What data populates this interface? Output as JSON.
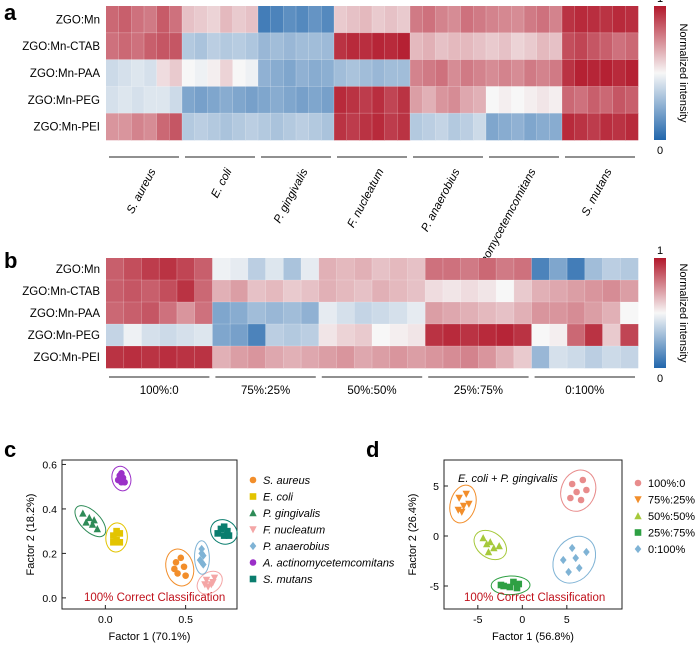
{
  "panels": {
    "a": {
      "letter": "a",
      "rows": [
        "ZGO:Mn",
        "ZGO:Mn-CTAB",
        "ZGO:Mn-PAA",
        "ZGO:Mn-PEG",
        "ZGO:Mn-PEI"
      ],
      "groups": [
        "S. aureus",
        "E. coli",
        "P. gingivalis",
        "F. nucleatum",
        "P. anaerobius",
        "A. actinomycetemcomitans",
        "S. mutans"
      ],
      "colorbar": {
        "max_label": "1",
        "min_label": "0",
        "title": "Normalized intensity"
      }
    },
    "b": {
      "letter": "b",
      "rows": [
        "ZGO:Mn",
        "ZGO:Mn-CTAB",
        "ZGO:Mn-PAA",
        "ZGO:Mn-PEG",
        "ZGO:Mn-PEI"
      ],
      "groups": [
        "100%:0",
        "75%:25%",
        "50%:50%",
        "25%:75%",
        "0:100%"
      ],
      "colorbar": {
        "max_label": "1",
        "min_label": "0",
        "title": "Normalized intensity"
      }
    },
    "c": {
      "letter": "c",
      "annotation": "100% Correct Classification"
    },
    "d": {
      "letter": "d",
      "annotation": "100% Correct Classification",
      "subtitle": "E. coli + P. gingivalis"
    }
  },
  "colors": {
    "low": "#2166ac",
    "mid": "#f7f7f7",
    "high": "#b2182b",
    "annotation": "#c0121c"
  },
  "chart_data": [
    {
      "type": "heatmap",
      "panel": "a",
      "title": "",
      "rows": [
        "ZGO:Mn",
        "ZGO:Mn-CTAB",
        "ZGO:Mn-PAA",
        "ZGO:Mn-PEG",
        "ZGO:Mn-PEI"
      ],
      "groups": [
        "S. aureus",
        "E. coli",
        "P. gingivalis",
        "F. nucleatum",
        "P. anaerobius",
        "A. actinomycetemcomitans",
        "S. mutans"
      ],
      "columns_per_group": 6,
      "value_range": [
        0,
        1
      ],
      "values": [
        [
          0.82,
          0.84,
          0.8,
          0.78,
          0.85,
          0.8,
          0.62,
          0.6,
          0.58,
          0.64,
          0.6,
          0.62,
          0.08,
          0.1,
          0.14,
          0.12,
          0.16,
          0.12,
          0.6,
          0.62,
          0.64,
          0.6,
          0.62,
          0.6,
          0.78,
          0.8,
          0.76,
          0.74,
          0.8,
          0.78,
          0.76,
          0.75,
          0.74,
          0.78,
          0.8,
          0.76,
          0.94,
          0.96,
          0.95,
          0.94,
          0.96,
          0.95
        ],
        [
          0.8,
          0.82,
          0.8,
          0.84,
          0.86,
          0.86,
          0.34,
          0.32,
          0.36,
          0.34,
          0.35,
          0.33,
          0.28,
          0.3,
          0.28,
          0.3,
          0.3,
          0.29,
          0.94,
          0.96,
          0.95,
          0.97,
          0.96,
          0.98,
          0.64,
          0.66,
          0.62,
          0.64,
          0.64,
          0.62,
          0.6,
          0.62,
          0.58,
          0.6,
          0.64,
          0.62,
          0.88,
          0.9,
          0.86,
          0.84,
          0.8,
          0.82
        ],
        [
          0.4,
          0.42,
          0.44,
          0.42,
          0.56,
          0.6,
          0.5,
          0.48,
          0.52,
          0.58,
          0.5,
          0.48,
          0.26,
          0.24,
          0.22,
          0.26,
          0.24,
          0.25,
          0.3,
          0.32,
          0.3,
          0.28,
          0.3,
          0.3,
          0.76,
          0.78,
          0.8,
          0.74,
          0.78,
          0.76,
          0.74,
          0.76,
          0.74,
          0.78,
          0.76,
          0.78,
          0.94,
          0.98,
          0.97,
          0.98,
          0.96,
          0.98
        ],
        [
          0.42,
          0.44,
          0.42,
          0.44,
          0.44,
          0.4,
          0.22,
          0.2,
          0.22,
          0.24,
          0.22,
          0.2,
          0.22,
          0.24,
          0.22,
          0.2,
          0.22,
          0.2,
          0.96,
          0.94,
          0.92,
          0.95,
          0.9,
          0.94,
          0.7,
          0.66,
          0.72,
          0.74,
          0.68,
          0.66,
          0.5,
          0.52,
          0.5,
          0.52,
          0.54,
          0.52,
          0.82,
          0.8,
          0.84,
          0.82,
          0.86,
          0.84
        ],
        [
          0.72,
          0.72,
          0.76,
          0.74,
          0.82,
          0.86,
          0.34,
          0.36,
          0.34,
          0.32,
          0.34,
          0.36,
          0.34,
          0.32,
          0.34,
          0.36,
          0.34,
          0.32,
          0.94,
          0.92,
          0.94,
          0.96,
          0.92,
          0.94,
          0.34,
          0.36,
          0.38,
          0.34,
          0.36,
          0.4,
          0.22,
          0.24,
          0.26,
          0.22,
          0.24,
          0.24,
          0.96,
          0.94,
          0.92,
          0.95,
          0.94,
          0.96
        ]
      ]
    },
    {
      "type": "heatmap",
      "panel": "b",
      "title": "",
      "rows": [
        "ZGO:Mn",
        "ZGO:Mn-CTAB",
        "ZGO:Mn-PAA",
        "ZGO:Mn-PEG",
        "ZGO:Mn-PEI"
      ],
      "groups": [
        "100%:0",
        "75%:25%",
        "50%:50%",
        "25%:75%",
        "0:100%"
      ],
      "columns_per_group": 6,
      "value_range": [
        0,
        1
      ],
      "values": [
        [
          0.84,
          0.88,
          0.92,
          0.94,
          0.9,
          0.84,
          0.48,
          0.46,
          0.36,
          0.44,
          0.32,
          0.46,
          0.66,
          0.64,
          0.66,
          0.62,
          0.64,
          0.62,
          0.8,
          0.8,
          0.78,
          0.82,
          0.78,
          0.8,
          0.1,
          0.22,
          0.08,
          0.3,
          0.36,
          0.34
        ],
        [
          0.84,
          0.86,
          0.84,
          0.88,
          0.94,
          0.82,
          0.66,
          0.7,
          0.62,
          0.64,
          0.6,
          0.62,
          0.66,
          0.64,
          0.62,
          0.66,
          0.64,
          0.62,
          0.56,
          0.54,
          0.56,
          0.54,
          0.5,
          0.6,
          0.66,
          0.68,
          0.7,
          0.72,
          0.74,
          0.7
        ],
        [
          0.82,
          0.84,
          0.86,
          0.8,
          0.72,
          0.8,
          0.22,
          0.24,
          0.3,
          0.28,
          0.3,
          0.26,
          0.46,
          0.42,
          0.38,
          0.4,
          0.42,
          0.46,
          0.7,
          0.68,
          0.66,
          0.64,
          0.62,
          0.66,
          0.72,
          0.72,
          0.74,
          0.7,
          0.66,
          0.5
        ],
        [
          0.38,
          0.48,
          0.42,
          0.4,
          0.42,
          0.44,
          0.22,
          0.2,
          0.1,
          0.36,
          0.34,
          0.36,
          0.54,
          0.58,
          0.6,
          0.5,
          0.52,
          0.54,
          0.94,
          0.96,
          0.94,
          0.96,
          0.97,
          0.94,
          0.5,
          0.52,
          0.82,
          0.94,
          0.6,
          0.9
        ],
        [
          0.94,
          0.95,
          0.94,
          0.95,
          0.94,
          0.94,
          0.66,
          0.7,
          0.72,
          0.68,
          0.66,
          0.68,
          0.7,
          0.72,
          0.68,
          0.7,
          0.72,
          0.7,
          0.72,
          0.74,
          0.76,
          0.72,
          0.66,
          0.6,
          0.28,
          0.42,
          0.4,
          0.36,
          0.4,
          0.38
        ]
      ]
    },
    {
      "type": "scatter",
      "panel": "c",
      "xlabel": "Factor 1 (70.1%)",
      "ylabel": "Factor 2 (18.2%)",
      "xlim": [
        -0.27,
        0.82
      ],
      "ylim": [
        -0.05,
        0.62
      ],
      "xticks": [
        0.0,
        0.5
      ],
      "yticks": [
        0.0,
        0.2,
        0.4,
        0.6
      ],
      "series": [
        {
          "name": "S. aureus",
          "color": "#f28e2b",
          "marker": "circle",
          "points": [
            [
              0.44,
              0.16
            ],
            [
              0.47,
              0.18
            ],
            [
              0.49,
              0.14
            ],
            [
              0.45,
              0.11
            ],
            [
              0.5,
              0.1
            ],
            [
              0.43,
              0.13
            ]
          ]
        },
        {
          "name": "E. coli",
          "color": "#e3c400",
          "marker": "square",
          "points": [
            [
              0.05,
              0.28
            ],
            [
              0.09,
              0.29
            ],
            [
              0.07,
              0.26
            ],
            [
              0.05,
              0.25
            ],
            [
              0.09,
              0.25
            ],
            [
              0.07,
              0.3
            ]
          ]
        },
        {
          "name": "P. gingivalis",
          "color": "#2e8b57",
          "marker": "triangle-up",
          "points": [
            [
              -0.14,
              0.38
            ],
            [
              -0.1,
              0.36
            ],
            [
              -0.08,
              0.33
            ],
            [
              -0.05,
              0.31
            ],
            [
              -0.12,
              0.34
            ],
            [
              -0.07,
              0.35
            ]
          ]
        },
        {
          "name": "F. nucleatum",
          "color": "#f4a6a6",
          "marker": "triangle-down",
          "points": [
            [
              0.63,
              0.08
            ],
            [
              0.67,
              0.07
            ],
            [
              0.64,
              0.05
            ],
            [
              0.68,
              0.09
            ],
            [
              0.66,
              0.06
            ],
            [
              0.62,
              0.06
            ]
          ]
        },
        {
          "name": "P. anaerobius",
          "color": "#7fb3d5",
          "marker": "diamond",
          "points": [
            [
              0.6,
              0.22
            ],
            [
              0.61,
              0.19
            ],
            [
              0.59,
              0.17
            ],
            [
              0.61,
              0.15
            ],
            [
              0.6,
              0.2
            ],
            [
              0.6,
              0.16
            ]
          ]
        },
        {
          "name": "A. actinomycetemcomitans",
          "color": "#9b30c8",
          "marker": "circle",
          "points": [
            [
              0.09,
              0.55
            ],
            [
              0.11,
              0.54
            ],
            [
              0.1,
              0.52
            ],
            [
              0.08,
              0.53
            ],
            [
              0.12,
              0.52
            ],
            [
              0.1,
              0.56
            ]
          ]
        },
        {
          "name": "S. mutans",
          "color": "#0a7d6e",
          "marker": "square",
          "points": [
            [
              0.72,
              0.31
            ],
            [
              0.76,
              0.3
            ],
            [
              0.74,
              0.28
            ],
            [
              0.7,
              0.29
            ],
            [
              0.77,
              0.28
            ],
            [
              0.74,
              0.32
            ]
          ]
        }
      ]
    },
    {
      "type": "scatter",
      "panel": "d",
      "title": "E. coli + P. gingivalis",
      "xlabel": "Factor 1 (56.8%)",
      "ylabel": "Factor 2 (26.4%)",
      "xlim": [
        -8.8,
        11.2
      ],
      "ylim": [
        -7.3,
        7.6
      ],
      "xticks": [
        -5,
        0,
        5
      ],
      "yticks": [
        -5,
        0,
        5
      ],
      "series": [
        {
          "name": "100%:0",
          "color": "#e88c8c",
          "marker": "circle",
          "points": [
            [
              5.6,
              5.2
            ],
            [
              6.8,
              5.6
            ],
            [
              6.1,
              4.4
            ],
            [
              5.4,
              3.8
            ],
            [
              7.2,
              4.6
            ],
            [
              6.6,
              3.6
            ]
          ]
        },
        {
          "name": "75%:25%",
          "color": "#f28e2b",
          "marker": "triangle-down",
          "points": [
            [
              -7.1,
              3.8
            ],
            [
              -6.3,
              4.2
            ],
            [
              -6.6,
              3.0
            ],
            [
              -7.2,
              2.6
            ],
            [
              -6.0,
              3.2
            ],
            [
              -6.8,
              2.4
            ]
          ]
        },
        {
          "name": "50%:50%",
          "color": "#a6c93b",
          "marker": "triangle-up",
          "points": [
            [
              -4.4,
              -0.2
            ],
            [
              -3.6,
              -0.6
            ],
            [
              -3.8,
              -1.6
            ],
            [
              -4.0,
              -0.8
            ],
            [
              -3.2,
              -1.2
            ],
            [
              -2.6,
              -1.0
            ]
          ]
        },
        {
          "name": "25%:75%",
          "color": "#2ea043",
          "marker": "square",
          "points": [
            [
              -2.1,
              -5.0
            ],
            [
              -1.0,
              -4.6
            ],
            [
              -0.4,
              -4.8
            ],
            [
              -0.6,
              -5.2
            ],
            [
              -1.4,
              -5.1
            ],
            [
              -2.4,
              -4.9
            ]
          ]
        },
        {
          "name": "0:100%",
          "color": "#7fb3d5",
          "marker": "diamond",
          "points": [
            [
              4.6,
              -2.4
            ],
            [
              5.6,
              -1.2
            ],
            [
              6.0,
              -2.2
            ],
            [
              6.4,
              -3.2
            ],
            [
              7.2,
              -1.6
            ],
            [
              5.2,
              -3.6
            ]
          ]
        }
      ]
    }
  ]
}
